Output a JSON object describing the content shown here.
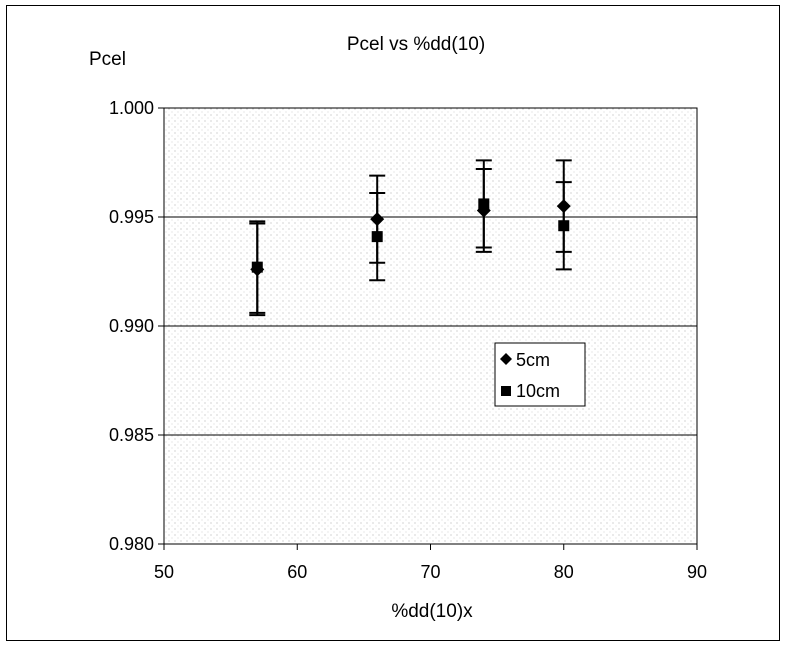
{
  "chart_data": {
    "type": "scatter",
    "title": "Pcel vs %dd(10)",
    "xlabel": "%dd(10)x",
    "ylabel": "Pcel",
    "xlim": [
      50,
      90
    ],
    "ylim": [
      0.98,
      1.0
    ],
    "xticks": [
      "50",
      "60",
      "70",
      "80",
      "90"
    ],
    "yticks": [
      "0.980",
      "0.985",
      "0.990",
      "0.995",
      "1.000"
    ],
    "xtick_values": [
      50,
      60,
      70,
      80,
      90
    ],
    "ytick_values": [
      0.98,
      0.985,
      0.99,
      0.995,
      1.0
    ],
    "grid": "horizontal",
    "legend_position": "center-right",
    "plot_background": "#d9d9d9",
    "series": [
      {
        "name": "5cm",
        "marker": "diamond",
        "color": "#000000",
        "points": [
          {
            "x": 57,
            "y": 0.9926,
            "yerr": 0.0021
          },
          {
            "x": 66,
            "y": 0.9949,
            "yerr": 0.002
          },
          {
            "x": 74,
            "y": 0.9953,
            "yerr": 0.0019
          },
          {
            "x": 80,
            "y": 0.9955,
            "yerr": 0.0021
          }
        ]
      },
      {
        "name": "10cm",
        "marker": "square",
        "color": "#000000",
        "points": [
          {
            "x": 57,
            "y": 0.9927,
            "yerr": 0.0021
          },
          {
            "x": 66,
            "y": 0.9941,
            "yerr": 0.002
          },
          {
            "x": 74,
            "y": 0.9956,
            "yerr": 0.002
          },
          {
            "x": 80,
            "y": 0.9946,
            "yerr": 0.002
          }
        ]
      }
    ]
  }
}
